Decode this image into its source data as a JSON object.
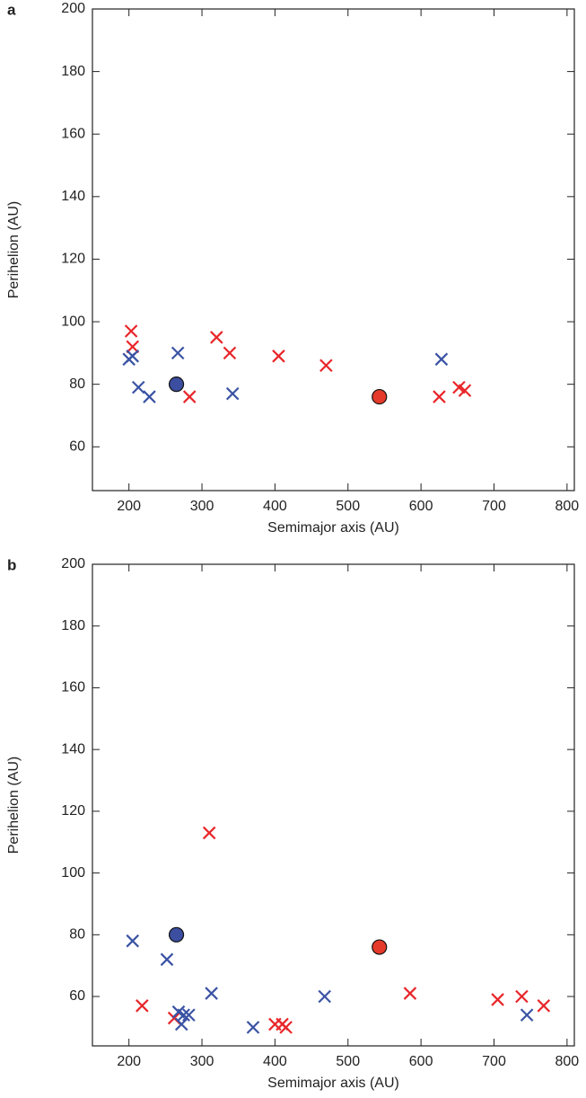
{
  "chart_data": [
    {
      "type": "scatter",
      "panel_label": "a",
      "xlabel": "Semimajor axis (AU)",
      "ylabel": "Perihelion (AU)",
      "xlim": [
        150,
        810
      ],
      "ylim": [
        46,
        200
      ],
      "xticks": [
        200,
        300,
        400,
        500,
        600,
        700,
        800
      ],
      "yticks": [
        60,
        80,
        100,
        120,
        140,
        160,
        180,
        200
      ],
      "series": [
        {
          "color": "#e8262a",
          "marker": "cross",
          "x": [
            203,
            205,
            283,
            320,
            338,
            405,
            470,
            625,
            652,
            660
          ],
          "y": [
            97,
            92,
            76,
            95,
            90,
            89,
            86,
            76,
            79,
            78
          ]
        },
        {
          "color": "#3a53a4",
          "marker": "cross",
          "x": [
            200,
            205,
            213,
            228,
            267,
            342,
            628
          ],
          "y": [
            88,
            89,
            79,
            76,
            90,
            77,
            88
          ]
        },
        {
          "color": "#3b4ea0",
          "marker": "circle",
          "x": [
            265
          ],
          "y": [
            80
          ]
        },
        {
          "color": "#e53a2b",
          "marker": "circle",
          "x": [
            543
          ],
          "y": [
            76
          ]
        }
      ]
    },
    {
      "type": "scatter",
      "panel_label": "b",
      "xlabel": "Semimajor axis (AU)",
      "ylabel": "Perihelion (AU)",
      "xlim": [
        150,
        810
      ],
      "ylim": [
        44,
        200
      ],
      "xticks": [
        200,
        300,
        400,
        500,
        600,
        700,
        800
      ],
      "yticks": [
        60,
        80,
        100,
        120,
        140,
        160,
        180,
        200
      ],
      "series": [
        {
          "color": "#e8262a",
          "marker": "cross",
          "x": [
            218,
            262,
            310,
            400,
            410,
            415,
            585,
            705,
            738,
            768
          ],
          "y": [
            57,
            53,
            113,
            51,
            51,
            50,
            61,
            59,
            60,
            57
          ]
        },
        {
          "color": "#3a53a4",
          "marker": "cross",
          "x": [
            205,
            252,
            268,
            275,
            282,
            272,
            313,
            370,
            468,
            745
          ],
          "y": [
            78,
            72,
            55,
            54,
            54,
            51,
            61,
            50,
            60,
            54
          ]
        },
        {
          "color": "#3b4ea0",
          "marker": "circle",
          "x": [
            265
          ],
          "y": [
            80
          ]
        },
        {
          "color": "#e53a2b",
          "marker": "circle",
          "x": [
            543
          ],
          "y": [
            76
          ]
        }
      ]
    }
  ]
}
